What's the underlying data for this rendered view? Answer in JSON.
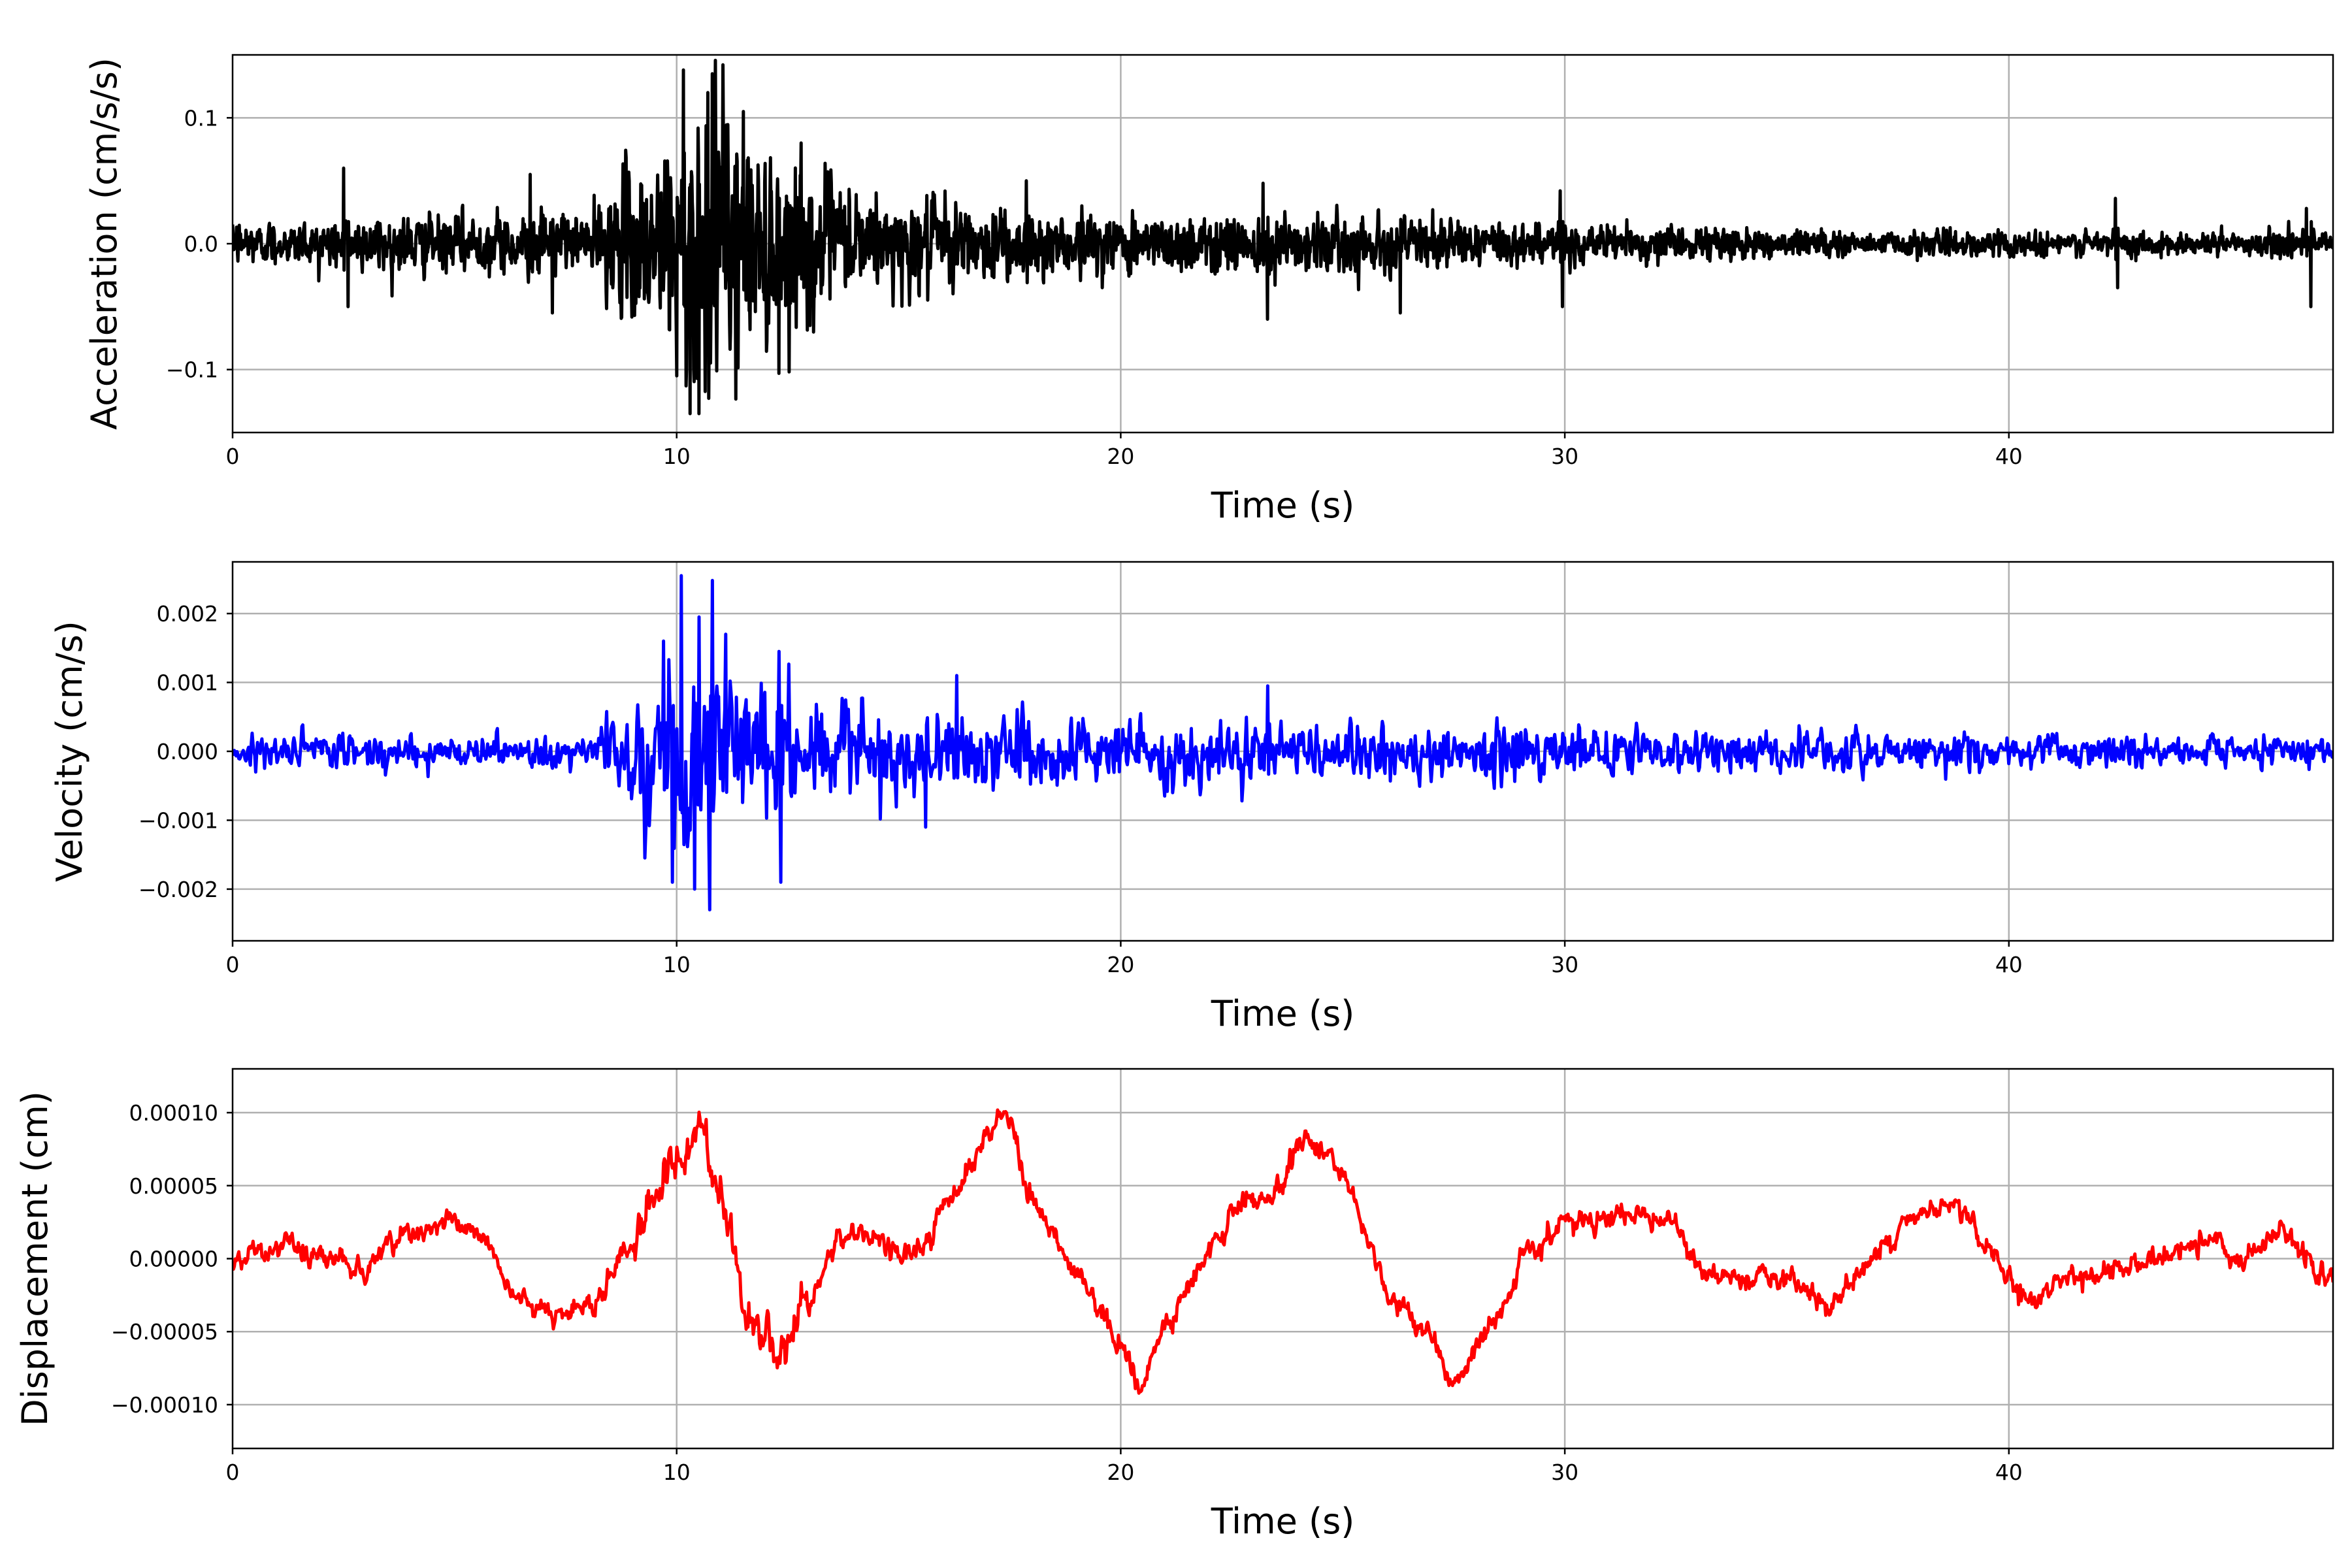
{
  "chart_data": [
    {
      "type": "line",
      "xlabel": "Time (s)",
      "ylabel": "Acceleration (cm/s/s)",
      "xlim": [
        0,
        47.3
      ],
      "ylim": [
        -0.15,
        0.15
      ],
      "xticks": [
        0,
        10,
        20,
        30,
        40
      ],
      "xtick_labels": [
        "0",
        "10",
        "20",
        "30",
        "40"
      ],
      "yticks": [
        -0.1,
        0.0,
        0.1
      ],
      "ytick_labels": [
        "−0.1",
        "0.0",
        "0.1"
      ],
      "grid": true,
      "color": "#000000",
      "signal": {
        "duration": 47.3,
        "samples": 4730,
        "kind": "noise",
        "envelope_t": [
          0,
          2,
          5,
          8,
          8.5,
          9.5,
          10.2,
          11,
          12,
          13,
          14,
          16,
          18,
          20,
          23,
          26,
          30,
          35,
          40,
          45,
          47.3
        ],
        "envelope_a": [
          0.008,
          0.01,
          0.012,
          0.012,
          0.02,
          0.045,
          0.06,
          0.055,
          0.04,
          0.03,
          0.022,
          0.018,
          0.015,
          0.013,
          0.012,
          0.011,
          0.008,
          0.006,
          0.005,
          0.005,
          0.005
        ],
        "spikes": [
          [
            10.15,
            0.138
          ],
          [
            10.8,
            0.135
          ],
          [
            10.3,
            -0.135
          ],
          [
            10.5,
            -0.135
          ],
          [
            10.7,
            0.12
          ],
          [
            10.0,
            -0.105
          ],
          [
            12.3,
            -0.103
          ],
          [
            11.5,
            0.105
          ],
          [
            2.5,
            0.06
          ],
          [
            2.6,
            -0.05
          ],
          [
            23.3,
            -0.06
          ],
          [
            23.2,
            0.048
          ],
          [
            26.3,
            -0.055
          ],
          [
            29.9,
            0.042
          ],
          [
            29.95,
            -0.05
          ],
          [
            42.4,
            0.036
          ],
          [
            42.45,
            -0.035
          ],
          [
            46.7,
            0.028
          ],
          [
            46.8,
            -0.05
          ],
          [
            6.7,
            0.055
          ],
          [
            7.2,
            -0.055
          ],
          [
            13.0,
            -0.065
          ],
          [
            12.8,
            0.08
          ]
        ]
      }
    },
    {
      "type": "line",
      "xlabel": "Time (s)",
      "ylabel": "Velocity (cm/s)",
      "xlim": [
        0,
        47.3
      ],
      "ylim": [
        -0.00275,
        0.00275
      ],
      "xticks": [
        0,
        10,
        20,
        30,
        40
      ],
      "xtick_labels": [
        "0",
        "10",
        "20",
        "30",
        "40"
      ],
      "yticks": [
        -0.002,
        -0.001,
        0.0,
        0.001,
        0.002
      ],
      "ytick_labels": [
        "−0.002",
        "−0.001",
        "0.000",
        "0.001",
        "0.002"
      ],
      "grid": true,
      "color": "#0000ff",
      "signal": {
        "duration": 47.3,
        "samples": 2365,
        "kind": "noise",
        "envelope_t": [
          0,
          5,
          8,
          8.5,
          9.5,
          10.2,
          11,
          12,
          13,
          14,
          16,
          18,
          20,
          23,
          26,
          30,
          35,
          40,
          45,
          47.3
        ],
        "envelope_a": [
          0.00012,
          0.00013,
          0.00013,
          0.00025,
          0.00065,
          0.0009,
          0.0008,
          0.0006,
          0.00045,
          0.00035,
          0.0003,
          0.00027,
          0.00025,
          0.00024,
          0.00022,
          0.0002,
          0.00017,
          0.00014,
          0.00012,
          0.00012
        ],
        "spikes": [
          [
            10.1,
            0.00255
          ],
          [
            10.8,
            0.00248
          ],
          [
            10.75,
            -0.0023
          ],
          [
            10.4,
            -0.002
          ],
          [
            9.9,
            -0.0019
          ],
          [
            12.35,
            -0.0019
          ],
          [
            12.3,
            0.00145
          ],
          [
            10.5,
            0.00195
          ],
          [
            11.1,
            0.0017
          ],
          [
            9.7,
            0.0016
          ],
          [
            15.6,
            -0.0011
          ],
          [
            16.3,
            0.0011
          ],
          [
            23.3,
            0.00095
          ]
        ]
      }
    },
    {
      "type": "line",
      "xlabel": "Time (s)",
      "ylabel": "Displacement (cm)",
      "xlim": [
        0,
        47.3
      ],
      "ylim": [
        -0.00013,
        0.00013
      ],
      "xticks": [
        0,
        10,
        20,
        30,
        40
      ],
      "xtick_labels": [
        "0",
        "10",
        "20",
        "30",
        "40"
      ],
      "yticks": [
        -0.0001,
        -5e-05,
        0.0,
        5e-05,
        0.0001
      ],
      "ytick_labels": [
        "−0.00010",
        "−0.00005",
        "0.00000",
        "0.00005",
        "0.00010"
      ],
      "grid": true,
      "color": "#ff0000",
      "signal": {
        "duration": 47.3,
        "samples": 2365,
        "kind": "smooth",
        "anchors_t": [
          0,
          1,
          2,
          3,
          4,
          4.8,
          5.5,
          6.5,
          7.2,
          7.9,
          8.8,
          9.5,
          10.2,
          10.6,
          11.0,
          11.5,
          12.3,
          13.0,
          13.6,
          14.2,
          15.0,
          15.6,
          16.2,
          17.0,
          17.4,
          18.0,
          19.0,
          20.0,
          20.4,
          21.0,
          22.0,
          22.8,
          23.5,
          24.2,
          24.8,
          25.5,
          26.0,
          27.0,
          27.6,
          28.3,
          29.0,
          30.0,
          31.0,
          31.8,
          32.5,
          33.0,
          34.0,
          35.0,
          36.0,
          36.6,
          37.5,
          38.4,
          39.0,
          40.0,
          40.6,
          41.5,
          42.5,
          43.5,
          44.5,
          45.5,
          46.2,
          47.0,
          47.3
        ],
        "anchors_v": [
          0,
          1e-05,
          0,
          -5e-06,
          1.5e-05,
          2.5e-05,
          2e-05,
          -3e-05,
          -4e-05,
          -3.5e-05,
          0,
          4e-05,
          8e-05,
          9e-05,
          5e-05,
          -3e-05,
          -7e-05,
          -3e-05,
          1e-05,
          2e-05,
          5e-06,
          1e-05,
          4e-05,
          8.5e-05,
          0.0001,
          4e-05,
          -1e-05,
          -6e-05,
          -8.5e-05,
          -5e-05,
          1e-05,
          4e-05,
          5e-05,
          8e-05,
          7e-05,
          2e-05,
          -3e-05,
          -5e-05,
          -8e-05,
          -5e-05,
          0,
          2.5e-05,
          3e-05,
          3e-05,
          2e-05,
          -5e-06,
          -2e-05,
          -1e-05,
          -3e-05,
          -1e-05,
          2e-05,
          3.5e-05,
          3e-05,
          -1e-05,
          -3e-05,
          -1e-05,
          -1e-05,
          5e-06,
          1e-05,
          0,
          2.5e-05,
          -1e-05,
          -5e-06
        ],
        "noise": 8e-06
      }
    }
  ]
}
